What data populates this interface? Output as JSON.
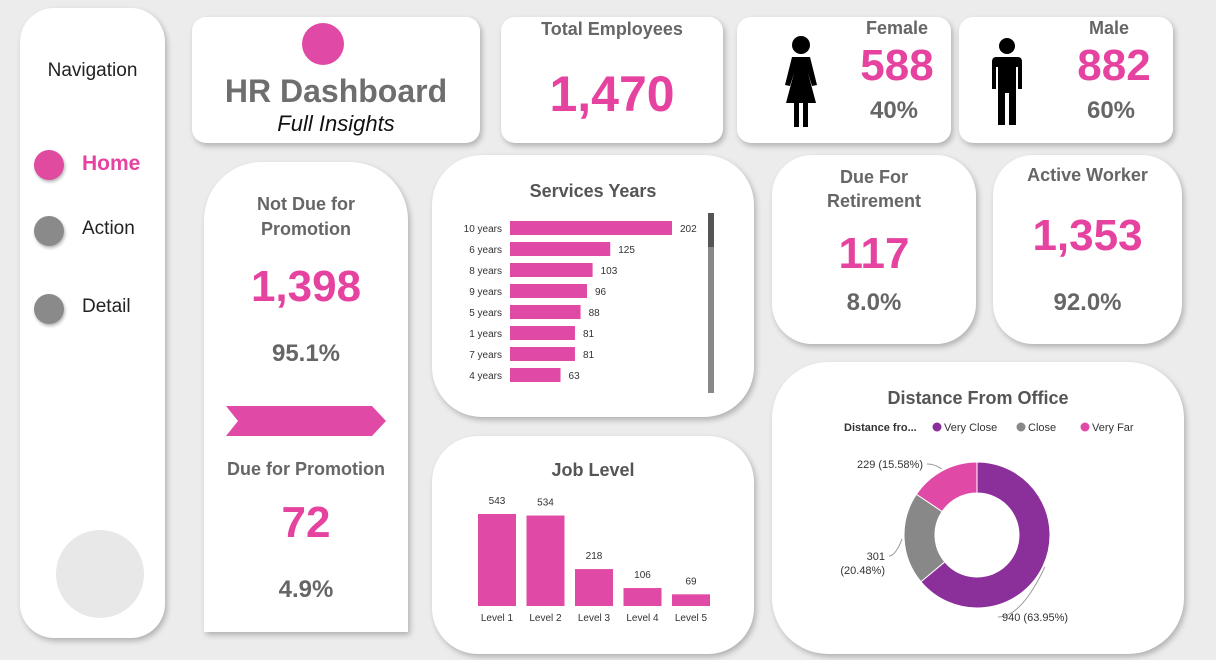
{
  "nav": {
    "title": "Navigation",
    "items": [
      {
        "label": "Home"
      },
      {
        "label": "Action"
      },
      {
        "label": "Detail"
      }
    ]
  },
  "header": {
    "title": "HR Dashboard",
    "subtitle": "Full Insights"
  },
  "total": {
    "label": "Total Employees",
    "value": "1,470"
  },
  "female": {
    "label": "Female",
    "value": "588",
    "pct": "40%"
  },
  "male": {
    "label": "Male",
    "value": "882",
    "pct": "60%"
  },
  "promotion": {
    "not_due_label": "Not Due for Promotion",
    "not_due_value": "1,398",
    "not_due_pct": "95.1%",
    "due_label": "Due for Promotion",
    "due_value": "72",
    "due_pct": "4.9%"
  },
  "retirement": {
    "label": "Due For Retirement",
    "value": "117",
    "pct": "8.0%"
  },
  "active": {
    "label": "Active Worker",
    "value": "1,353",
    "pct": "92.0%"
  },
  "colors": {
    "accent": "#e6429f",
    "bar": "#e04aa6",
    "purple": "#8b2f9b",
    "grey": "#888888"
  },
  "chart_data": [
    {
      "type": "bar",
      "orientation": "horizontal",
      "title": "Services Years",
      "categories": [
        "10 years",
        "6 years",
        "8 years",
        "9 years",
        "5 years",
        "1 years",
        "7 years",
        "4 years"
      ],
      "values": [
        202,
        125,
        103,
        96,
        88,
        81,
        81,
        63
      ]
    },
    {
      "type": "bar",
      "title": "Job Level",
      "categories": [
        "Level 1",
        "Level 2",
        "Level 3",
        "Level 4",
        "Level 5"
      ],
      "values": [
        543,
        534,
        218,
        106,
        69
      ]
    },
    {
      "type": "pie",
      "title": "Distance From Office",
      "legend_title": "Distance fro...",
      "legend": [
        "Very Close",
        "Close",
        "Very Far"
      ],
      "series": [
        {
          "name": "Very Close",
          "value": 940,
          "label": "940 (63.95%)",
          "color": "#8b2f9b"
        },
        {
          "name": "Close",
          "value": 301,
          "label": "301 (20.48%)",
          "color": "#888888"
        },
        {
          "name": "Very Far",
          "value": 229,
          "label": "229 (15.58%)",
          "color": "#e04aa6"
        }
      ]
    }
  ]
}
